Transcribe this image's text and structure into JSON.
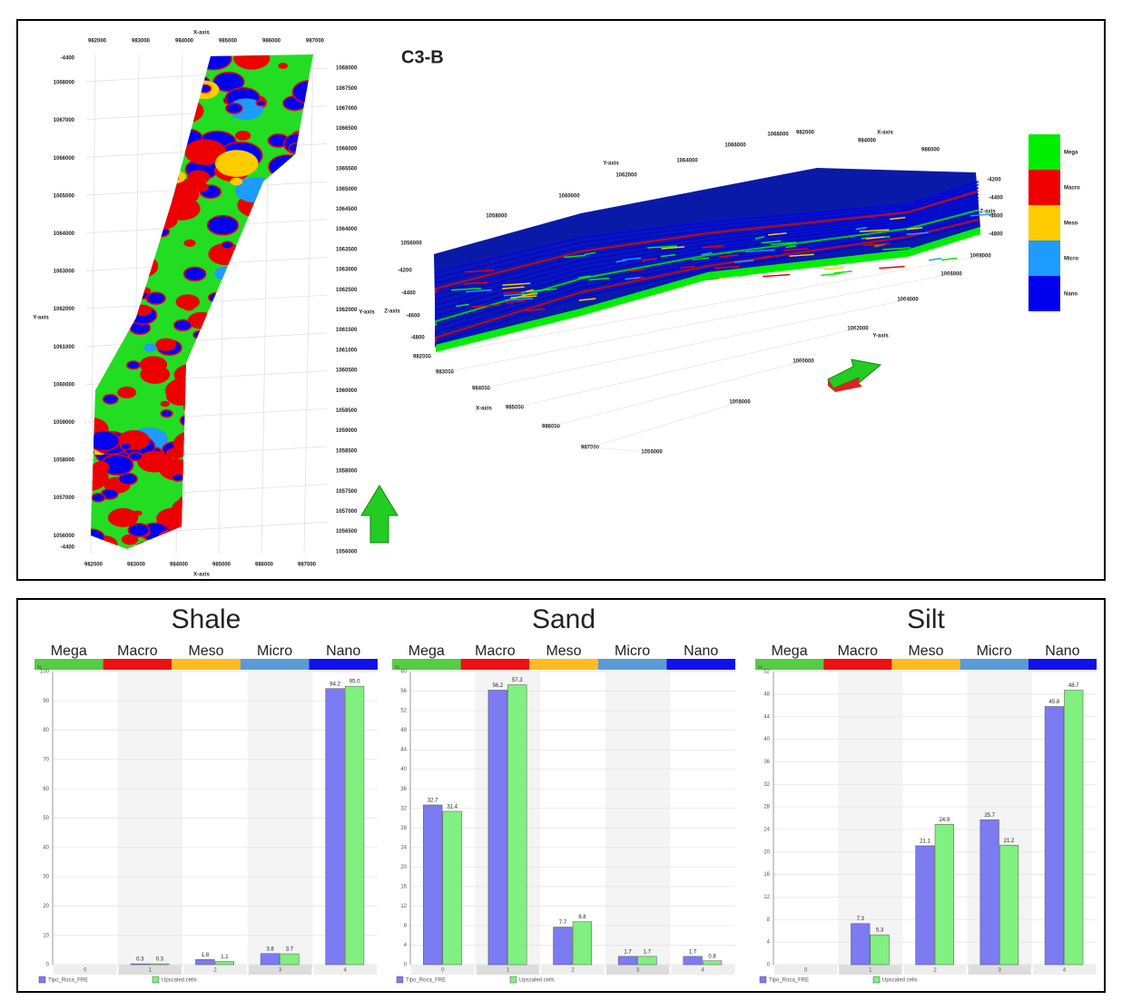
{
  "map_panel": {
    "label": "C3-B",
    "plan_view": {
      "x_axis_title": "X-axis",
      "y_axis_title": "Y-axis",
      "xticks_top": [
        982000,
        983000,
        984000,
        985000,
        986000,
        987000
      ],
      "xticks_bottom": [
        982000,
        983000,
        984000,
        985000,
        986000,
        987000
      ],
      "yticks_left": [
        1068000,
        1067000,
        1066000,
        1065000,
        1064000,
        1063000,
        1062000,
        1061000,
        1060000,
        1059000,
        1058000,
        1057000,
        1056000
      ],
      "yticks_right": [
        1068000,
        1067500,
        1067000,
        1066500,
        1066000,
        1065500,
        1065000,
        1064500,
        1064000,
        1063500,
        1063000,
        1062500,
        1062000,
        1061500,
        1061000,
        1060500,
        1060000,
        1059500,
        1059000,
        1058500,
        1058000,
        1057500,
        1057000,
        1056500,
        1056000
      ],
      "z_labels": [
        -4400,
        -4400
      ]
    },
    "block_view": {
      "y_axis_title": "Y-axis",
      "x_axis_title": "X-axis",
      "z_axis_title": "Z-axis",
      "yticks_top": [
        1056000,
        1058000,
        1060000,
        1062000,
        1064000,
        1066000,
        1068000
      ],
      "xticks_top": [
        982000,
        984000,
        986000
      ],
      "zticks_right": [
        -4200,
        -4400,
        -4600,
        -4800
      ],
      "zticks_left": [
        -4200,
        -4400,
        -4600,
        -4800
      ],
      "xticks_bottom": [
        982000,
        983000,
        984000,
        985000,
        986000,
        987000
      ],
      "yticks_right": [
        1068000,
        1066000,
        1064000,
        1062000,
        1060000,
        1058000,
        1056000
      ]
    },
    "legend": [
      {
        "name": "Mega",
        "color": "#00ee00"
      },
      {
        "name": "Macro",
        "color": "#ee0000"
      },
      {
        "name": "Meso",
        "color": "#ffcc00"
      },
      {
        "name": "Micro",
        "color": "#1e9bff"
      },
      {
        "name": "Nano",
        "color": "#0000ee"
      }
    ]
  },
  "chart_data": [
    {
      "type": "bar",
      "title": "Shale",
      "ylabel": "%",
      "classes": [
        {
          "name": "Mega",
          "color": "#55cc44"
        },
        {
          "name": "Macro",
          "color": "#ee1111"
        },
        {
          "name": "Meso",
          "color": "#ffbb22"
        },
        {
          "name": "Micro",
          "color": "#5b9bd5"
        },
        {
          "name": "Nano",
          "color": "#1111ee"
        }
      ],
      "categories": [
        0,
        1,
        2,
        3,
        4
      ],
      "ylim": [
        0,
        100
      ],
      "yticks": [
        0,
        10,
        20,
        30,
        40,
        50,
        60,
        70,
        80,
        90,
        100
      ],
      "legend": "bottom-left",
      "series": [
        {
          "name": "Tipo_Roca_FRE",
          "color": "#7b7bf2",
          "values": [
            0,
            0.3,
            1.8,
            3.8,
            94.2
          ],
          "value_labels": [
            null,
            "0.3",
            "1.8",
            "3.8",
            "94.2"
          ]
        },
        {
          "name": "Upscaled cells",
          "color": "#80f080",
          "values": [
            0,
            0.3,
            1.1,
            3.7,
            95.0
          ],
          "value_labels": [
            null,
            "0.3",
            "1.1",
            "3.7",
            "95.0"
          ]
        }
      ]
    },
    {
      "type": "bar",
      "title": "Sand",
      "ylabel": "%",
      "classes": [
        {
          "name": "Mega",
          "color": "#55cc44"
        },
        {
          "name": "Macro",
          "color": "#ee1111"
        },
        {
          "name": "Meso",
          "color": "#ffbb22"
        },
        {
          "name": "Micro",
          "color": "#5b9bd5"
        },
        {
          "name": "Nano",
          "color": "#1111ee"
        }
      ],
      "categories": [
        0,
        1,
        2,
        3,
        4
      ],
      "ylim": [
        0,
        60
      ],
      "yticks": [
        0,
        4,
        8,
        12,
        16,
        20,
        24,
        28,
        32,
        36,
        40,
        44,
        48,
        52,
        56,
        60
      ],
      "legend": "bottom-left",
      "series": [
        {
          "name": "Tipo_Roca_FRE",
          "color": "#7b7bf2",
          "values": [
            32.7,
            56.2,
            7.7,
            1.7,
            1.7
          ]
        },
        {
          "name": "Upscaled cells",
          "color": "#80f080",
          "values": [
            31.4,
            57.3,
            8.8,
            1.7,
            0.8
          ]
        }
      ]
    },
    {
      "type": "bar",
      "title": "Silt",
      "ylabel": "%",
      "classes": [
        {
          "name": "Mega",
          "color": "#55cc44"
        },
        {
          "name": "Macro",
          "color": "#ee1111"
        },
        {
          "name": "Meso",
          "color": "#ffbb22"
        },
        {
          "name": "Micro",
          "color": "#5b9bd5"
        },
        {
          "name": "Nano",
          "color": "#1111ee"
        }
      ],
      "categories": [
        0,
        1,
        2,
        3,
        4
      ],
      "ylim": [
        0,
        52
      ],
      "yticks": [
        0,
        4,
        8,
        12,
        16,
        20,
        24,
        28,
        32,
        36,
        40,
        44,
        48,
        52
      ],
      "legend": "bottom-left",
      "series": [
        {
          "name": "Tipo_Roca_FRE",
          "color": "#7b7bf2",
          "values": [
            0,
            7.3,
            21.1,
            25.7,
            45.8
          ],
          "value_labels": [
            null,
            "7.3",
            "21.1",
            "25.7",
            "45.8"
          ]
        },
        {
          "name": "Upscaled cells",
          "color": "#80f080",
          "values": [
            0,
            5.3,
            24.9,
            21.2,
            48.7
          ],
          "value_labels": [
            null,
            "5.3",
            "24.9",
            "21.2",
            "48.7"
          ]
        }
      ]
    }
  ]
}
